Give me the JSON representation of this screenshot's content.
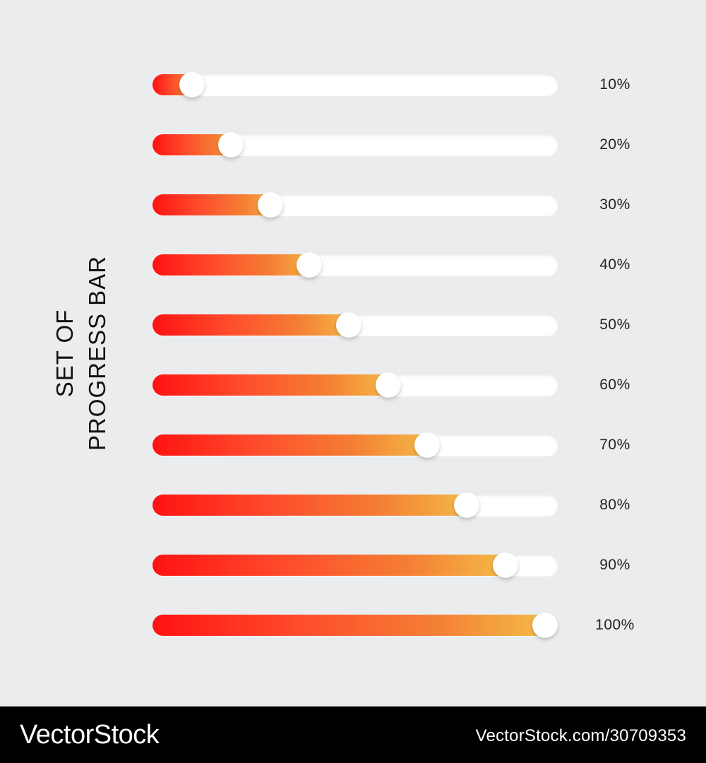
{
  "title": {
    "line1": "SET OF",
    "line2": "PROGRESS BAR"
  },
  "progress_bars": [
    {
      "label": "10%",
      "value": 0.1
    },
    {
      "label": "20%",
      "value": 0.2
    },
    {
      "label": "30%",
      "value": 0.3
    },
    {
      "label": "40%",
      "value": 0.4
    },
    {
      "label": "50%",
      "value": 0.5
    },
    {
      "label": "60%",
      "value": 0.6
    },
    {
      "label": "70%",
      "value": 0.7
    },
    {
      "label": "80%",
      "value": 0.8
    },
    {
      "label": "90%",
      "value": 0.9
    },
    {
      "label": "100%",
      "value": 1.0
    }
  ],
  "footer": {
    "brand": "VectorStock",
    "image_id": "VectorStock.com/30709353"
  },
  "colors": {
    "background": "#ebecee",
    "gradient_start": "#ff1212",
    "gradient_end": "#f3c14a",
    "track": "#ffffff",
    "footer": "#000000"
  }
}
